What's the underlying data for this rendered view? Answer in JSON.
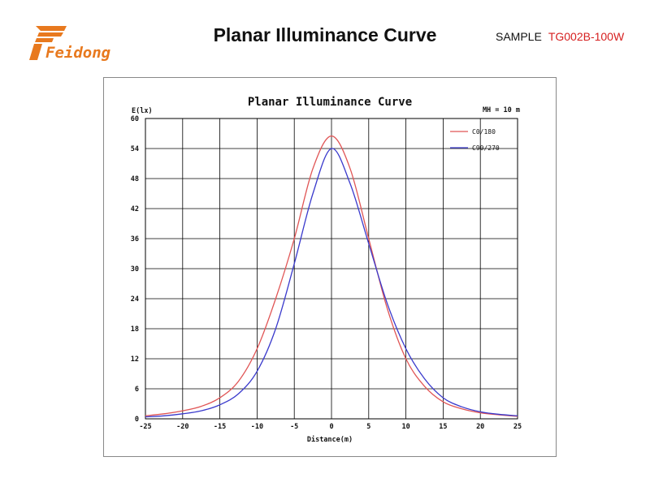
{
  "header": {
    "logo_text": "Feidong",
    "title": "Planar Illuminance Curve",
    "sample_label": "SAMPLE",
    "sample_code": "TG002B-100W"
  },
  "colors": {
    "brand_orange": "#e8791e",
    "sample_code_red": "#d61f1f",
    "series_c0": "#e05555",
    "series_c90": "#3a3acc"
  },
  "chart_data": {
    "type": "line",
    "title": "Planar Illuminance Curve",
    "annotation": "MH = 10 m",
    "xlabel": "Distance(m)",
    "ylabel": "E(lx)",
    "xlim": [
      -25,
      25
    ],
    "ylim": [
      0,
      60
    ],
    "xticks": [
      -25,
      -20,
      -15,
      -10,
      -5,
      0,
      5,
      10,
      15,
      20,
      25
    ],
    "yticks": [
      0,
      6,
      12,
      18,
      24,
      30,
      36,
      42,
      48,
      54,
      60
    ],
    "grid": true,
    "legend_position": "top-right",
    "x": [
      -25,
      -22.5,
      -20,
      -17.5,
      -15,
      -12.5,
      -10,
      -7.5,
      -5,
      -2.5,
      0,
      2.5,
      5,
      7.5,
      10,
      12.5,
      15,
      17.5,
      20,
      22.5,
      25
    ],
    "series": [
      {
        "name": "C0/180",
        "color": "#e05555",
        "values": [
          0.6,
          1.0,
          1.6,
          2.5,
          4.2,
          7.5,
          14,
          24,
          36,
          50,
          56.5,
          50,
          36,
          22,
          12,
          6.5,
          3.4,
          2.0,
          1.2,
          0.8,
          0.5
        ]
      },
      {
        "name": "C90/270",
        "color": "#3a3acc",
        "values": [
          0.4,
          0.6,
          1.0,
          1.6,
          2.8,
          5.0,
          9.5,
          18,
          31,
          45,
          54,
          47,
          35,
          23,
          14,
          8,
          4.2,
          2.4,
          1.4,
          0.9,
          0.6
        ]
      }
    ]
  }
}
